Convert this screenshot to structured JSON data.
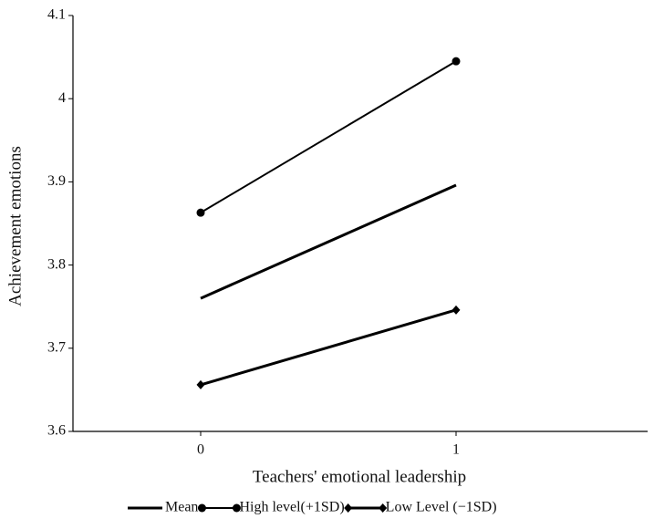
{
  "chart_data": {
    "type": "line",
    "x_label": "Teachers' emotional leadership",
    "y_label": "Achievement emotions",
    "x": [
      0,
      1
    ],
    "xlim": [
      -0.5,
      1.75
    ],
    "xticks": [
      0,
      1
    ],
    "ylim": [
      3.6,
      4.1
    ],
    "yticks": [
      3.6,
      3.7,
      3.8,
      3.9,
      4,
      4.1
    ],
    "grid": false,
    "legend": "below",
    "series": [
      {
        "name": "Mean",
        "color": "#000000",
        "marker": "none",
        "linewidth": 3,
        "values": [
          3.76,
          3.896
        ]
      },
      {
        "name": "High level(+1SD)",
        "color": "#000000",
        "marker": "circle",
        "linewidth": 2,
        "values": [
          3.863,
          4.045
        ]
      },
      {
        "name": "Low Level (−1SD)",
        "color": "#000000",
        "marker": "diamond",
        "linewidth": 3,
        "values": [
          3.656,
          3.746
        ]
      }
    ]
  }
}
